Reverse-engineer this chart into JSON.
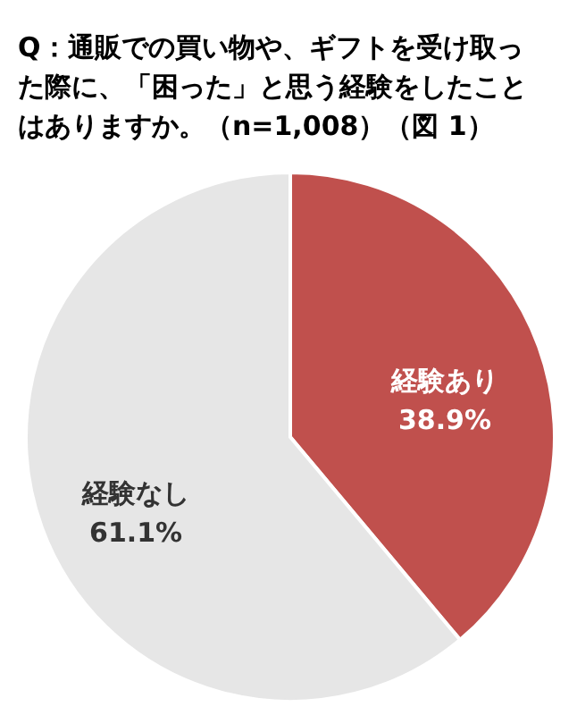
{
  "chart_data": {
    "type": "pie",
    "title": "Q：通販での買い物や、ギフトを受け取った際に、「困った」と思う経験をしたことはありますか。（n=1,008）（図 1）",
    "categories": [
      "経験あり",
      "経験なし"
    ],
    "values": [
      38.9,
      61.1
    ],
    "colors": [
      "#c0504d",
      "#e6e6e6"
    ],
    "value_labels": [
      "38.9%",
      "61.1%"
    ],
    "legend": false
  }
}
